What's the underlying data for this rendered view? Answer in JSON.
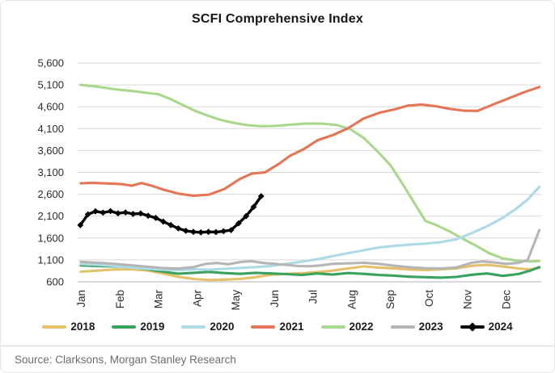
{
  "footer": {
    "source": "Source: Clarksons, Morgan Stanley Research"
  },
  "chart_data": {
    "type": "line",
    "title": "SCFI Comprehensive Index",
    "xlabel": "",
    "ylabel": "",
    "grid": "horizontal",
    "legend_position": "bottom",
    "x_axis": {
      "labels": [
        "Jan",
        "Feb",
        "Mar",
        "Apr",
        "May",
        "Jun",
        "Jul",
        "Aug",
        "Sep",
        "Oct",
        "Nov",
        "Dec"
      ]
    },
    "y_axis": {
      "min": 600,
      "max": 5600,
      "step": 500,
      "labels": [
        "5,600",
        "5,100",
        "4,600",
        "4,100",
        "3,600",
        "3,100",
        "2,600",
        "2,100",
        "1,600",
        "1,100",
        "600"
      ]
    },
    "series": [
      {
        "name": "2018",
        "color": "#e4c068",
        "points": [
          [
            0.08,
            830
          ],
          [
            0.5,
            855
          ],
          [
            0.95,
            880
          ],
          [
            1.4,
            885
          ],
          [
            1.8,
            860
          ],
          [
            2.2,
            790
          ],
          [
            2.6,
            715
          ],
          [
            3.0,
            665
          ],
          [
            3.4,
            640
          ],
          [
            3.8,
            650
          ],
          [
            4.2,
            665
          ],
          [
            4.6,
            705
          ],
          [
            5.0,
            760
          ],
          [
            5.4,
            780
          ],
          [
            5.8,
            795
          ],
          [
            6.2,
            820
          ],
          [
            6.6,
            855
          ],
          [
            7.0,
            905
          ],
          [
            7.4,
            950
          ],
          [
            7.8,
            925
          ],
          [
            8.2,
            905
          ],
          [
            8.6,
            880
          ],
          [
            9.0,
            870
          ],
          [
            9.4,
            885
          ],
          [
            9.8,
            905
          ],
          [
            10.2,
            965
          ],
          [
            10.6,
            985
          ],
          [
            11.0,
            950
          ],
          [
            11.4,
            905
          ],
          [
            11.7,
            880
          ],
          [
            11.95,
            915
          ]
        ]
      },
      {
        "name": "2019",
        "color": "#3aa25f",
        "points": [
          [
            0.08,
            975
          ],
          [
            0.5,
            960
          ],
          [
            0.95,
            950
          ],
          [
            1.4,
            935
          ],
          [
            1.8,
            885
          ],
          [
            2.2,
            830
          ],
          [
            2.6,
            785
          ],
          [
            3.0,
            805
          ],
          [
            3.4,
            825
          ],
          [
            3.8,
            800
          ],
          [
            4.2,
            780
          ],
          [
            4.6,
            805
          ],
          [
            5.0,
            790
          ],
          [
            5.4,
            775
          ],
          [
            5.8,
            755
          ],
          [
            6.2,
            790
          ],
          [
            6.6,
            765
          ],
          [
            7.0,
            800
          ],
          [
            7.4,
            780
          ],
          [
            7.8,
            755
          ],
          [
            8.2,
            740
          ],
          [
            8.6,
            715
          ],
          [
            9.0,
            705
          ],
          [
            9.4,
            695
          ],
          [
            9.8,
            710
          ],
          [
            10.2,
            760
          ],
          [
            10.6,
            790
          ],
          [
            11.0,
            735
          ],
          [
            11.4,
            775
          ],
          [
            11.7,
            850
          ],
          [
            11.95,
            935
          ]
        ]
      },
      {
        "name": "2020",
        "color": "#aed9e6",
        "points": [
          [
            0.08,
            1005
          ],
          [
            0.5,
            990
          ],
          [
            0.95,
            960
          ],
          [
            1.4,
            925
          ],
          [
            1.8,
            895
          ],
          [
            2.2,
            875
          ],
          [
            2.6,
            865
          ],
          [
            3.0,
            885
          ],
          [
            3.4,
            875
          ],
          [
            3.8,
            895
          ],
          [
            4.2,
            915
          ],
          [
            4.6,
            935
          ],
          [
            5.0,
            960
          ],
          [
            5.4,
            1010
          ],
          [
            5.8,
            1060
          ],
          [
            6.2,
            1115
          ],
          [
            6.6,
            1185
          ],
          [
            7.0,
            1255
          ],
          [
            7.4,
            1320
          ],
          [
            7.8,
            1385
          ],
          [
            8.2,
            1420
          ],
          [
            8.6,
            1450
          ],
          [
            9.0,
            1470
          ],
          [
            9.4,
            1505
          ],
          [
            9.8,
            1570
          ],
          [
            10.2,
            1710
          ],
          [
            10.6,
            1870
          ],
          [
            11.0,
            2060
          ],
          [
            11.35,
            2270
          ],
          [
            11.65,
            2480
          ],
          [
            11.95,
            2770
          ]
        ]
      },
      {
        "name": "2021",
        "color": "#e57554",
        "points": [
          [
            0.08,
            2850
          ],
          [
            0.4,
            2860
          ],
          [
            0.8,
            2845
          ],
          [
            1.15,
            2830
          ],
          [
            1.4,
            2795
          ],
          [
            1.65,
            2855
          ],
          [
            1.9,
            2800
          ],
          [
            2.2,
            2710
          ],
          [
            2.6,
            2615
          ],
          [
            3.0,
            2565
          ],
          [
            3.4,
            2590
          ],
          [
            3.8,
            2720
          ],
          [
            4.2,
            2950
          ],
          [
            4.5,
            3070
          ],
          [
            4.85,
            3100
          ],
          [
            5.2,
            3290
          ],
          [
            5.5,
            3480
          ],
          [
            5.85,
            3630
          ],
          [
            6.2,
            3830
          ],
          [
            6.6,
            3950
          ],
          [
            7.0,
            4110
          ],
          [
            7.4,
            4330
          ],
          [
            7.8,
            4460
          ],
          [
            8.2,
            4540
          ],
          [
            8.55,
            4625
          ],
          [
            8.9,
            4650
          ],
          [
            9.25,
            4615
          ],
          [
            9.6,
            4555
          ],
          [
            10.0,
            4510
          ],
          [
            10.35,
            4505
          ],
          [
            10.75,
            4650
          ],
          [
            11.15,
            4790
          ],
          [
            11.55,
            4930
          ],
          [
            11.95,
            5050
          ]
        ]
      },
      {
        "name": "2022",
        "color": "#a9d78c",
        "points": [
          [
            0.08,
            5100
          ],
          [
            0.5,
            5060
          ],
          [
            0.95,
            5000
          ],
          [
            1.4,
            4960
          ],
          [
            1.8,
            4915
          ],
          [
            2.1,
            4885
          ],
          [
            2.4,
            4775
          ],
          [
            2.7,
            4650
          ],
          [
            3.0,
            4520
          ],
          [
            3.35,
            4400
          ],
          [
            3.7,
            4300
          ],
          [
            4.05,
            4230
          ],
          [
            4.4,
            4180
          ],
          [
            4.75,
            4155
          ],
          [
            5.1,
            4160
          ],
          [
            5.5,
            4190
          ],
          [
            5.9,
            4215
          ],
          [
            6.3,
            4215
          ],
          [
            6.7,
            4185
          ],
          [
            7.05,
            4090
          ],
          [
            7.4,
            3890
          ],
          [
            7.75,
            3590
          ],
          [
            8.1,
            3260
          ],
          [
            8.45,
            2780
          ],
          [
            8.75,
            2350
          ],
          [
            9.0,
            1990
          ],
          [
            9.3,
            1890
          ],
          [
            9.65,
            1740
          ],
          [
            9.95,
            1590
          ],
          [
            10.3,
            1430
          ],
          [
            10.65,
            1255
          ],
          [
            11.0,
            1135
          ],
          [
            11.35,
            1085
          ],
          [
            11.7,
            1065
          ],
          [
            11.95,
            1075
          ]
        ]
      },
      {
        "name": "2023",
        "color": "#b5b5b5",
        "points": [
          [
            0.08,
            1055
          ],
          [
            0.5,
            1035
          ],
          [
            0.95,
            1010
          ],
          [
            1.4,
            975
          ],
          [
            1.8,
            945
          ],
          [
            2.2,
            915
          ],
          [
            2.6,
            900
          ],
          [
            3.0,
            935
          ],
          [
            3.3,
            1005
          ],
          [
            3.6,
            1030
          ],
          [
            3.9,
            1000
          ],
          [
            4.2,
            1050
          ],
          [
            4.5,
            1070
          ],
          [
            4.8,
            1030
          ],
          [
            5.1,
            1010
          ],
          [
            5.4,
            985
          ],
          [
            5.7,
            960
          ],
          [
            6.0,
            955
          ],
          [
            6.3,
            975
          ],
          [
            6.6,
            1010
          ],
          [
            7.0,
            1020
          ],
          [
            7.4,
            1035
          ],
          [
            7.8,
            1010
          ],
          [
            8.2,
            965
          ],
          [
            8.6,
            930
          ],
          [
            9.0,
            910
          ],
          [
            9.4,
            905
          ],
          [
            9.8,
            925
          ],
          [
            10.2,
            1035
          ],
          [
            10.5,
            1065
          ],
          [
            10.8,
            1040
          ],
          [
            11.1,
            1010
          ],
          [
            11.4,
            1030
          ],
          [
            11.65,
            1100
          ],
          [
            11.95,
            1780
          ]
        ]
      },
      {
        "name": "2024",
        "color": "#000000",
        "marker": "diamond",
        "points": [
          [
            0.07,
            1896
          ],
          [
            0.265,
            2140
          ],
          [
            0.46,
            2210
          ],
          [
            0.655,
            2180
          ],
          [
            0.85,
            2215
          ],
          [
            1.045,
            2165
          ],
          [
            1.24,
            2185
          ],
          [
            1.435,
            2150
          ],
          [
            1.63,
            2160
          ],
          [
            1.825,
            2110
          ],
          [
            2.02,
            2060
          ],
          [
            2.215,
            1975
          ],
          [
            2.41,
            1895
          ],
          [
            2.605,
            1820
          ],
          [
            2.8,
            1765
          ],
          [
            2.995,
            1740
          ],
          [
            3.19,
            1730
          ],
          [
            3.385,
            1740
          ],
          [
            3.58,
            1735
          ],
          [
            3.775,
            1755
          ],
          [
            3.97,
            1780
          ],
          [
            4.165,
            1935
          ],
          [
            4.36,
            2100
          ],
          [
            4.555,
            2310
          ],
          [
            4.75,
            2555
          ]
        ]
      }
    ]
  }
}
